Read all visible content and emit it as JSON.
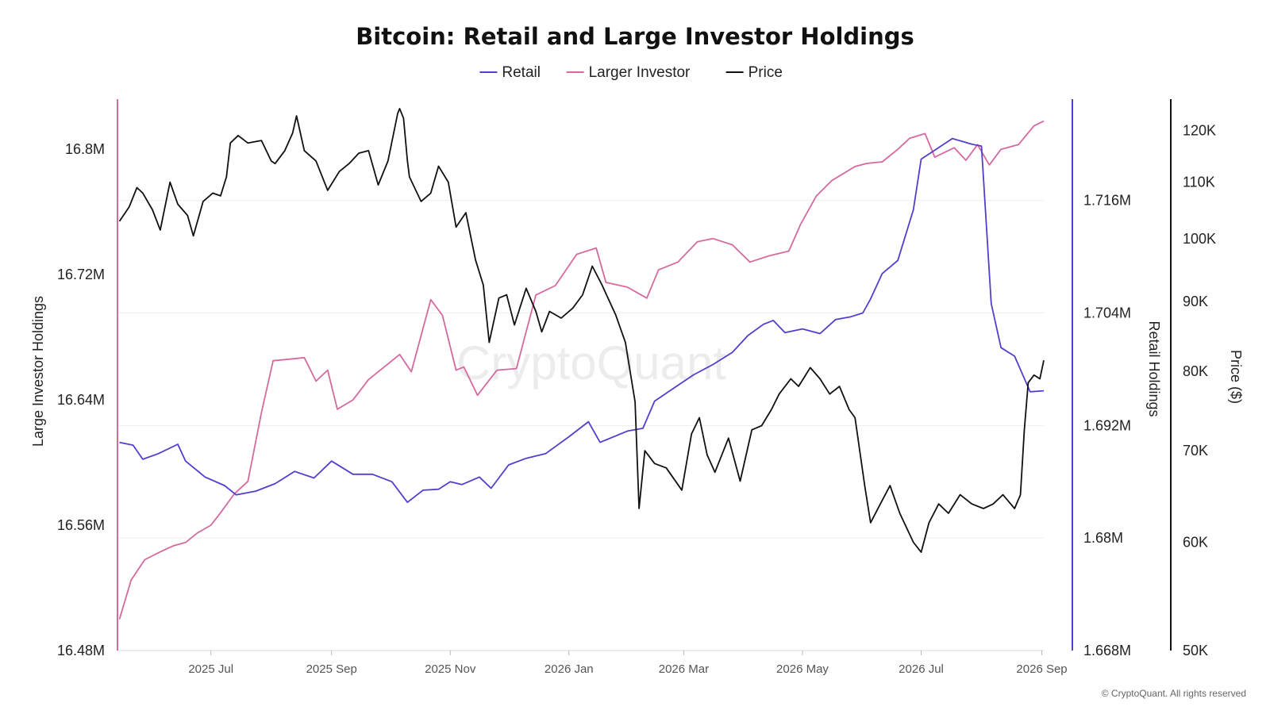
{
  "chart_data": {
    "type": "line",
    "title": "Bitcoin: Retail and Large Investor Holdings",
    "legend": {
      "placement": "top-center",
      "items": [
        {
          "name": "Retail",
          "color": "#5040cc"
        },
        {
          "name": "Larger Investor",
          "color": "#d56a9f"
        },
        {
          "name": "Price",
          "color": "#111111"
        }
      ]
    },
    "x_axis": {
      "type": "date",
      "range": [
        "2025-05-14",
        "2026-09-02"
      ],
      "ticks": [
        {
          "date": "2025-07-01",
          "label": "2025 Jul"
        },
        {
          "date": "2025-09-01",
          "label": "2025 Sep"
        },
        {
          "date": "2025-11-01",
          "label": "2025 Nov"
        },
        {
          "date": "2026-01-01",
          "label": "2026 Jan"
        },
        {
          "date": "2026-03-01",
          "label": "2026 Mar"
        },
        {
          "date": "2026-05-01",
          "label": "2026 May"
        },
        {
          "date": "2026-07-01",
          "label": "2026 Jul"
        },
        {
          "date": "2026-09-01",
          "label": "2026 Sep"
        }
      ]
    },
    "left_axis": {
      "label": "Large Investor Holdings",
      "min": 16480000,
      "max": 16832000,
      "ticks": [
        {
          "value": 16480000,
          "label": "16.48M"
        },
        {
          "value": 16560000,
          "label": "16.56M"
        },
        {
          "value": 16640000,
          "label": "16.64M"
        },
        {
          "value": 16720000,
          "label": "16.72M"
        },
        {
          "value": 16800000,
          "label": "16.8M"
        }
      ],
      "color": "#d56a9f"
    },
    "retail_axis": {
      "label": "Retail Holdings",
      "min": 1668000,
      "max": 1726800,
      "ticks": [
        {
          "value": 1668000,
          "label": "1.668M"
        },
        {
          "value": 1680000,
          "label": "1.68M"
        },
        {
          "value": 1692000,
          "label": "1.692M"
        },
        {
          "value": 1704000,
          "label": "1.704M"
        },
        {
          "value": 1716000,
          "label": "1.716M"
        }
      ],
      "color": "#5040cc"
    },
    "price_axis": {
      "label": "Price ($)",
      "scale": "log",
      "min": 50000,
      "max": 126500,
      "ticks": [
        {
          "value": 50000,
          "label": "50K"
        },
        {
          "value": 60000,
          "label": "60K"
        },
        {
          "value": 70000,
          "label": "70K"
        },
        {
          "value": 80000,
          "label": "80K"
        },
        {
          "value": 90000,
          "label": "90K"
        },
        {
          "value": 100000,
          "label": "100K"
        },
        {
          "value": 110000,
          "label": "110K"
        },
        {
          "value": 120000,
          "label": "120K"
        }
      ],
      "color": "#111111"
    },
    "grid": "horizontal",
    "series": [
      {
        "name": "Retail",
        "axis": "retail",
        "data": [
          [
            "2025-05-15",
            1690200
          ],
          [
            "2025-05-22",
            1689900
          ],
          [
            "2025-05-27",
            1688400
          ],
          [
            "2025-06-04",
            1689000
          ],
          [
            "2025-06-14",
            1690000
          ],
          [
            "2025-06-18",
            1688200
          ],
          [
            "2025-06-28",
            1686500
          ],
          [
            "2025-07-08",
            1685600
          ],
          [
            "2025-07-14",
            1684600
          ],
          [
            "2025-07-24",
            1685000
          ],
          [
            "2025-08-03",
            1685800
          ],
          [
            "2025-08-13",
            1687100
          ],
          [
            "2025-08-23",
            1686400
          ],
          [
            "2025-09-01",
            1688200
          ],
          [
            "2025-09-12",
            1686800
          ],
          [
            "2025-09-22",
            1686800
          ],
          [
            "2025-10-02",
            1686000
          ],
          [
            "2025-10-10",
            1683800
          ],
          [
            "2025-10-18",
            1685100
          ],
          [
            "2025-10-26",
            1685200
          ],
          [
            "2025-11-01",
            1686000
          ],
          [
            "2025-11-07",
            1685700
          ],
          [
            "2025-11-16",
            1686500
          ],
          [
            "2025-11-22",
            1685300
          ],
          [
            "2025-12-01",
            1687800
          ],
          [
            "2025-12-10",
            1688500
          ],
          [
            "2025-12-20",
            1689000
          ],
          [
            "2026-01-01",
            1690800
          ],
          [
            "2026-01-11",
            1692400
          ],
          [
            "2026-01-17",
            1690200
          ],
          [
            "2026-01-31",
            1691400
          ],
          [
            "2026-02-08",
            1691700
          ],
          [
            "2026-02-14",
            1694600
          ],
          [
            "2026-02-24",
            1696000
          ],
          [
            "2026-03-06",
            1697400
          ],
          [
            "2026-03-16",
            1698500
          ],
          [
            "2026-03-26",
            1699800
          ],
          [
            "2026-04-03",
            1701600
          ],
          [
            "2026-04-11",
            1702800
          ],
          [
            "2026-04-16",
            1703200
          ],
          [
            "2026-04-22",
            1701900
          ],
          [
            "2026-05-01",
            1702300
          ],
          [
            "2026-05-10",
            1701800
          ],
          [
            "2026-05-18",
            1703300
          ],
          [
            "2026-05-26",
            1703600
          ],
          [
            "2026-06-01",
            1704000
          ],
          [
            "2026-06-05",
            1705500
          ],
          [
            "2026-06-11",
            1708200
          ],
          [
            "2026-06-19",
            1709600
          ],
          [
            "2026-06-27",
            1715000
          ],
          [
            "2026-07-01",
            1720400
          ],
          [
            "2026-07-09",
            1721500
          ],
          [
            "2026-07-17",
            1722600
          ],
          [
            "2026-07-27",
            1722000
          ],
          [
            "2026-08-01",
            1721800
          ],
          [
            "2026-08-06",
            1705000
          ],
          [
            "2026-08-11",
            1700300
          ],
          [
            "2026-08-18",
            1699400
          ],
          [
            "2026-08-26",
            1695600
          ],
          [
            "2026-09-02",
            1695700
          ]
        ]
      },
      {
        "name": "Larger Investor",
        "axis": "left",
        "data": [
          [
            "2025-05-15",
            16500000
          ],
          [
            "2025-05-21",
            16525000
          ],
          [
            "2025-05-28",
            16538000
          ],
          [
            "2025-06-05",
            16543000
          ],
          [
            "2025-06-12",
            16547000
          ],
          [
            "2025-06-18",
            16549000
          ],
          [
            "2025-06-24",
            16555000
          ],
          [
            "2025-07-01",
            16560000
          ],
          [
            "2025-07-06",
            16568000
          ],
          [
            "2025-07-13",
            16580000
          ],
          [
            "2025-07-20",
            16588000
          ],
          [
            "2025-07-27",
            16632000
          ],
          [
            "2025-08-02",
            16665000
          ],
          [
            "2025-08-10",
            16666000
          ],
          [
            "2025-08-18",
            16667000
          ],
          [
            "2025-08-24",
            16652000
          ],
          [
            "2025-08-30",
            16659000
          ],
          [
            "2025-09-04",
            16634000
          ],
          [
            "2025-09-12",
            16640000
          ],
          [
            "2025-09-20",
            16653000
          ],
          [
            "2025-09-30",
            16663000
          ],
          [
            "2025-10-06",
            16669000
          ],
          [
            "2025-10-12",
            16658000
          ],
          [
            "2025-10-22",
            16704000
          ],
          [
            "2025-10-28",
            16694000
          ],
          [
            "2025-11-04",
            16659000
          ],
          [
            "2025-11-08",
            16661000
          ],
          [
            "2025-11-15",
            16643000
          ],
          [
            "2025-11-25",
            16659000
          ],
          [
            "2025-12-05",
            16660000
          ],
          [
            "2025-12-15",
            16707000
          ],
          [
            "2025-12-25",
            16713000
          ],
          [
            "2026-01-05",
            16733000
          ],
          [
            "2026-01-15",
            16737000
          ],
          [
            "2026-01-20",
            16715000
          ],
          [
            "2026-01-31",
            16712000
          ],
          [
            "2026-02-10",
            16705000
          ],
          [
            "2026-02-16",
            16723000
          ],
          [
            "2026-02-26",
            16728000
          ],
          [
            "2026-03-08",
            16741000
          ],
          [
            "2026-03-16",
            16743000
          ],
          [
            "2026-03-26",
            16739000
          ],
          [
            "2026-04-04",
            16728000
          ],
          [
            "2026-04-14",
            16732000
          ],
          [
            "2026-04-24",
            16735000
          ],
          [
            "2026-04-30",
            16752000
          ],
          [
            "2026-05-08",
            16770000
          ],
          [
            "2026-05-16",
            16780000
          ],
          [
            "2026-05-28",
            16789000
          ],
          [
            "2026-06-03",
            16791000
          ],
          [
            "2026-06-11",
            16792000
          ],
          [
            "2026-06-19",
            16800000
          ],
          [
            "2026-06-25",
            16807000
          ],
          [
            "2026-07-03",
            16810000
          ],
          [
            "2026-07-08",
            16795000
          ],
          [
            "2026-07-18",
            16801000
          ],
          [
            "2026-07-24",
            16793000
          ],
          [
            "2026-07-30",
            16803000
          ],
          [
            "2026-08-05",
            16790000
          ],
          [
            "2026-08-11",
            16800000
          ],
          [
            "2026-08-20",
            16803000
          ],
          [
            "2026-08-28",
            16815000
          ],
          [
            "2026-09-02",
            16818000
          ]
        ]
      },
      {
        "name": "Price",
        "axis": "price",
        "data": [
          [
            "2025-05-15",
            103000
          ],
          [
            "2025-05-20",
            105500
          ],
          [
            "2025-05-24",
            109000
          ],
          [
            "2025-05-27",
            108000
          ],
          [
            "2025-06-01",
            105000
          ],
          [
            "2025-06-05",
            101500
          ],
          [
            "2025-06-10",
            110000
          ],
          [
            "2025-06-14",
            106000
          ],
          [
            "2025-06-19",
            104000
          ],
          [
            "2025-06-22",
            100500
          ],
          [
            "2025-06-27",
            106500
          ],
          [
            "2025-07-02",
            108000
          ],
          [
            "2025-07-06",
            107500
          ],
          [
            "2025-07-09",
            111000
          ],
          [
            "2025-07-11",
            117500
          ],
          [
            "2025-07-15",
            119000
          ],
          [
            "2025-07-20",
            117500
          ],
          [
            "2025-07-27",
            118000
          ],
          [
            "2025-08-01",
            114000
          ],
          [
            "2025-08-03",
            113500
          ],
          [
            "2025-08-08",
            116000
          ],
          [
            "2025-08-12",
            119500
          ],
          [
            "2025-08-14",
            123000
          ],
          [
            "2025-08-18",
            116000
          ],
          [
            "2025-08-24",
            114000
          ],
          [
            "2025-08-30",
            108500
          ],
          [
            "2025-09-05",
            112000
          ],
          [
            "2025-09-10",
            113500
          ],
          [
            "2025-09-15",
            115500
          ],
          [
            "2025-09-20",
            116000
          ],
          [
            "2025-09-25",
            109500
          ],
          [
            "2025-09-30",
            114000
          ],
          [
            "2025-10-05",
            123500
          ],
          [
            "2025-10-06",
            124500
          ],
          [
            "2025-10-08",
            122500
          ],
          [
            "2025-10-10",
            114000
          ],
          [
            "2025-10-11",
            111000
          ],
          [
            "2025-10-17",
            106500
          ],
          [
            "2025-10-22",
            108000
          ],
          [
            "2025-10-26",
            113000
          ],
          [
            "2025-10-31",
            110000
          ],
          [
            "2025-11-04",
            102000
          ],
          [
            "2025-11-09",
            104500
          ],
          [
            "2025-11-14",
            96500
          ],
          [
            "2025-11-18",
            92500
          ],
          [
            "2025-11-21",
            84000
          ],
          [
            "2025-11-26",
            90500
          ],
          [
            "2025-11-30",
            91000
          ],
          [
            "2025-12-04",
            86500
          ],
          [
            "2025-12-10",
            92000
          ],
          [
            "2025-12-15",
            88500
          ],
          [
            "2025-12-18",
            85500
          ],
          [
            "2025-12-22",
            88500
          ],
          [
            "2025-12-28",
            87500
          ],
          [
            "2026-01-03",
            89000
          ],
          [
            "2026-01-08",
            91000
          ],
          [
            "2026-01-13",
            95500
          ],
          [
            "2026-01-18",
            92500
          ],
          [
            "2026-01-25",
            88000
          ],
          [
            "2026-01-30",
            84000
          ],
          [
            "2026-02-04",
            76000
          ],
          [
            "2026-02-06",
            63500
          ],
          [
            "2026-02-09",
            70000
          ],
          [
            "2026-02-14",
            68500
          ],
          [
            "2026-02-20",
            68000
          ],
          [
            "2026-02-28",
            65500
          ],
          [
            "2026-03-05",
            72000
          ],
          [
            "2026-03-09",
            74000
          ],
          [
            "2026-03-13",
            69500
          ],
          [
            "2026-03-17",
            67500
          ],
          [
            "2026-03-24",
            71500
          ],
          [
            "2026-03-30",
            66500
          ],
          [
            "2026-04-05",
            72500
          ],
          [
            "2026-04-10",
            73000
          ],
          [
            "2026-04-15",
            75000
          ],
          [
            "2026-04-19",
            77000
          ],
          [
            "2026-04-25",
            79000
          ],
          [
            "2026-04-29",
            78000
          ],
          [
            "2026-05-05",
            80500
          ],
          [
            "2026-05-10",
            79000
          ],
          [
            "2026-05-15",
            77000
          ],
          [
            "2026-05-20",
            78000
          ],
          [
            "2026-05-25",
            75000
          ],
          [
            "2026-05-28",
            74000
          ],
          [
            "2026-06-02",
            66000
          ],
          [
            "2026-06-05",
            62000
          ],
          [
            "2026-06-10",
            64000
          ],
          [
            "2026-06-15",
            66000
          ],
          [
            "2026-06-20",
            63000
          ],
          [
            "2026-06-27",
            60000
          ],
          [
            "2026-07-01",
            59000
          ],
          [
            "2026-07-05",
            62000
          ],
          [
            "2026-07-10",
            64000
          ],
          [
            "2026-07-15",
            63000
          ],
          [
            "2026-07-21",
            65000
          ],
          [
            "2026-07-27",
            64000
          ],
          [
            "2026-08-02",
            63500
          ],
          [
            "2026-08-07",
            64000
          ],
          [
            "2026-08-12",
            65000
          ],
          [
            "2026-08-18",
            63500
          ],
          [
            "2026-08-21",
            65000
          ],
          [
            "2026-08-23",
            72500
          ],
          [
            "2026-08-25",
            78500
          ],
          [
            "2026-08-28",
            79500
          ],
          [
            "2026-08-31",
            79000
          ],
          [
            "2026-09-02",
            81500
          ]
        ]
      }
    ],
    "watermark": "CryptoQuant",
    "footer": "© CryptoQuant. All rights reserved"
  }
}
